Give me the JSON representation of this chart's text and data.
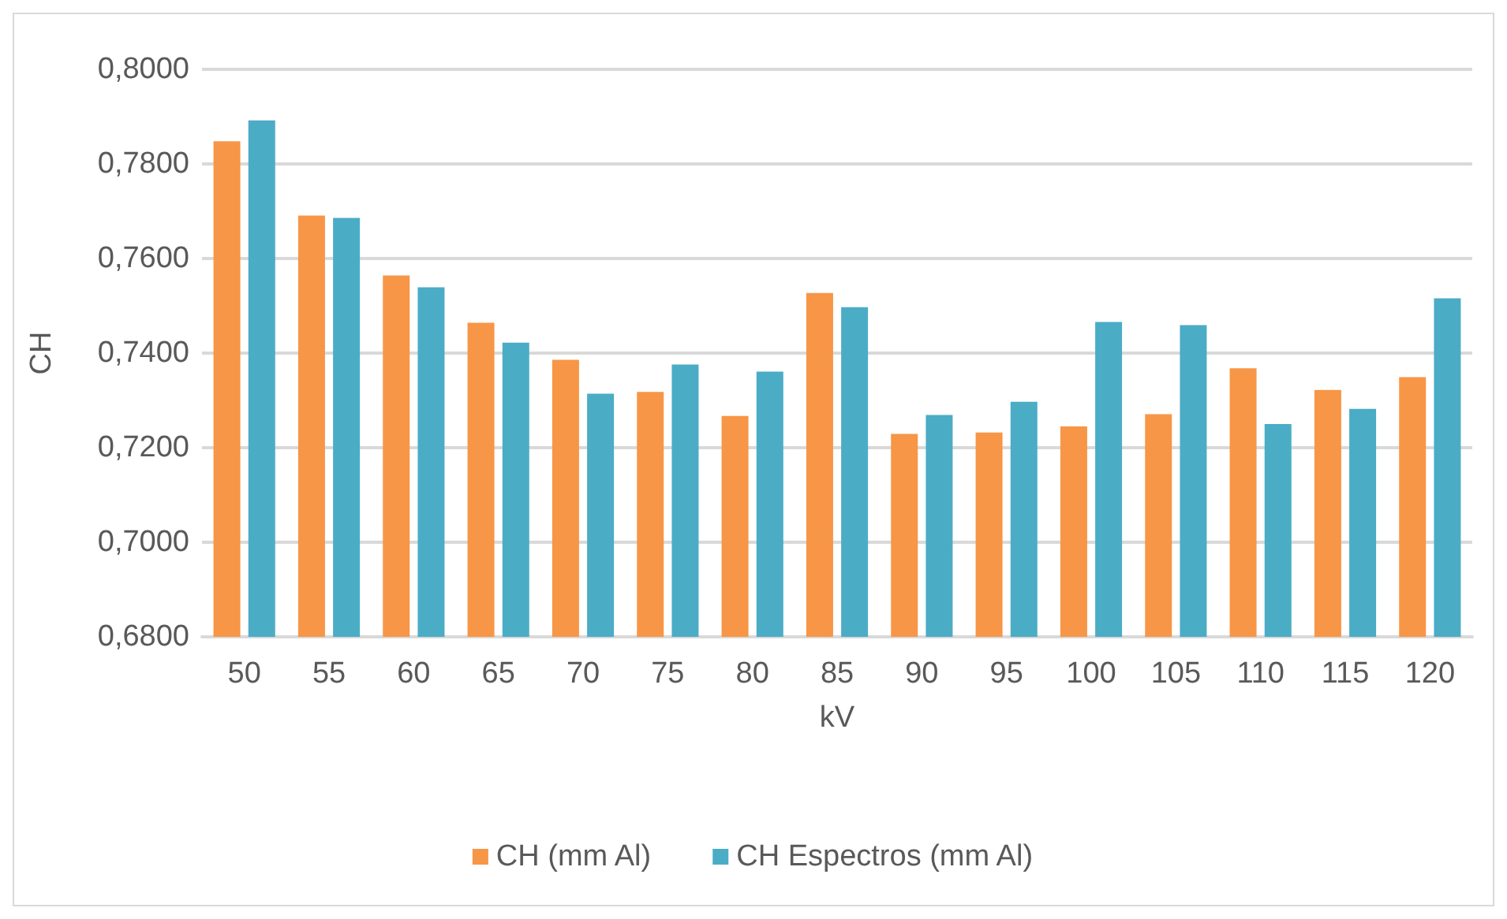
{
  "chart_data": {
    "type": "bar",
    "xlabel": "kV",
    "ylabel": "CH",
    "categories": [
      "50",
      "55",
      "60",
      "65",
      "70",
      "75",
      "80",
      "85",
      "90",
      "95",
      "100",
      "105",
      "110",
      "115",
      "120"
    ],
    "series": [
      {
        "name": "CH (mm Al)",
        "color": "#f79646",
        "values": [
          0.7848,
          0.7691,
          0.7564,
          0.7464,
          0.7386,
          0.7318,
          0.7267,
          0.7527,
          0.7229,
          0.7232,
          0.7245,
          0.7271,
          0.7368,
          0.7322,
          0.7349
        ]
      },
      {
        "name": "CH Espectros (mm Al)",
        "color": "#4bacc6",
        "values": [
          0.7892,
          0.7686,
          0.7539,
          0.7422,
          0.7314,
          0.7376,
          0.7361,
          0.7497,
          0.7269,
          0.7297,
          0.7466,
          0.7459,
          0.725,
          0.7282,
          0.7516
        ]
      }
    ],
    "ylim": [
      0.68,
      0.8
    ],
    "yticks": [
      {
        "value": 0.68,
        "label": "0,6800"
      },
      {
        "value": 0.7,
        "label": "0,7000"
      },
      {
        "value": 0.72,
        "label": "0,7200"
      },
      {
        "value": 0.74,
        "label": "0,7400"
      },
      {
        "value": 0.76,
        "label": "0,7600"
      },
      {
        "value": 0.78,
        "label": "0,7800"
      },
      {
        "value": 0.8,
        "label": "0,8000"
      }
    ],
    "grid": "y",
    "legend": "bottom"
  }
}
